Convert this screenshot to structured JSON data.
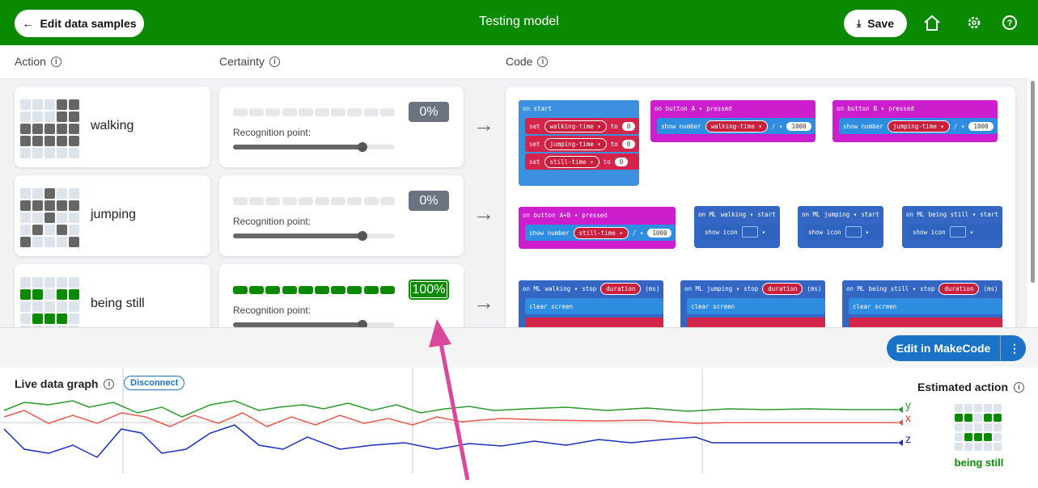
{
  "header": {
    "back": "Edit data samples",
    "title": "Testing model",
    "save": "Save"
  },
  "columns": {
    "action": "Action",
    "certainty": "Certainty",
    "code": "Code"
  },
  "actions": [
    {
      "name": "walking",
      "certainty": {
        "value": 0,
        "label": "0%"
      },
      "recognition": "Recognition point:"
    },
    {
      "name": "jumping",
      "certainty": {
        "value": 0,
        "label": "0%"
      },
      "recognition": "Recognition point:"
    },
    {
      "name": "being still",
      "certainty": {
        "value": 100,
        "label": "100%"
      },
      "recognition": "Recognition point:"
    }
  ],
  "code_blocks": [
    {
      "head": [
        "on start"
      ],
      "body": [
        [
          "set",
          "walking-time ▾",
          "to",
          "0"
        ],
        [
          "set",
          "jumping-time ▾",
          "to",
          "0"
        ],
        [
          "set",
          "still-time ▾",
          "to",
          "0"
        ]
      ]
    },
    {
      "head": [
        "on button",
        "A ▾",
        "pressed"
      ],
      "body": [
        [
          "show number",
          "walking-time ▾",
          "/ ▾",
          "1000"
        ]
      ]
    },
    {
      "head": [
        "on button",
        "B ▾",
        "pressed"
      ],
      "body": [
        [
          "show number",
          "jumping-time ▾",
          "/ ▾",
          "1000"
        ]
      ]
    },
    {
      "head": [
        "on button",
        "A+B ▾",
        "pressed"
      ],
      "body": [
        [
          "show number",
          "still-time ▾",
          "/ ▾",
          "1000"
        ]
      ]
    },
    {
      "head": [
        "on ML",
        "walking ▾",
        "start"
      ],
      "body": [
        [
          "show icon",
          "▾"
        ]
      ]
    },
    {
      "head": [
        "on ML",
        "jumping ▾",
        "start"
      ],
      "body": [
        [
          "show icon",
          "▾"
        ]
      ]
    },
    {
      "head": [
        "on ML",
        "being still ▾",
        "start"
      ],
      "body": [
        [
          "show icon",
          "▾"
        ]
      ]
    },
    {
      "head": [
        "on ML",
        "walking ▾",
        "stop",
        "duration",
        "(ms)"
      ],
      "body": [
        [
          "clear screen"
        ]
      ]
    },
    {
      "head": [
        "on ML",
        "jumping ▾",
        "stop",
        "duration",
        "(ms)"
      ],
      "body": [
        [
          "clear screen"
        ]
      ]
    },
    {
      "head": [
        "on ML",
        "being still ▾",
        "stop",
        "duration",
        "(ms)"
      ],
      "body": [
        [
          "clear screen"
        ]
      ]
    }
  ],
  "edit_button": "Edit in MakeCode",
  "graph": {
    "title": "Live data graph",
    "disconnect": "Disconnect",
    "axes": [
      "y",
      "x",
      "z"
    ]
  },
  "estimated": {
    "title": "Estimated action",
    "action": "being still"
  }
}
